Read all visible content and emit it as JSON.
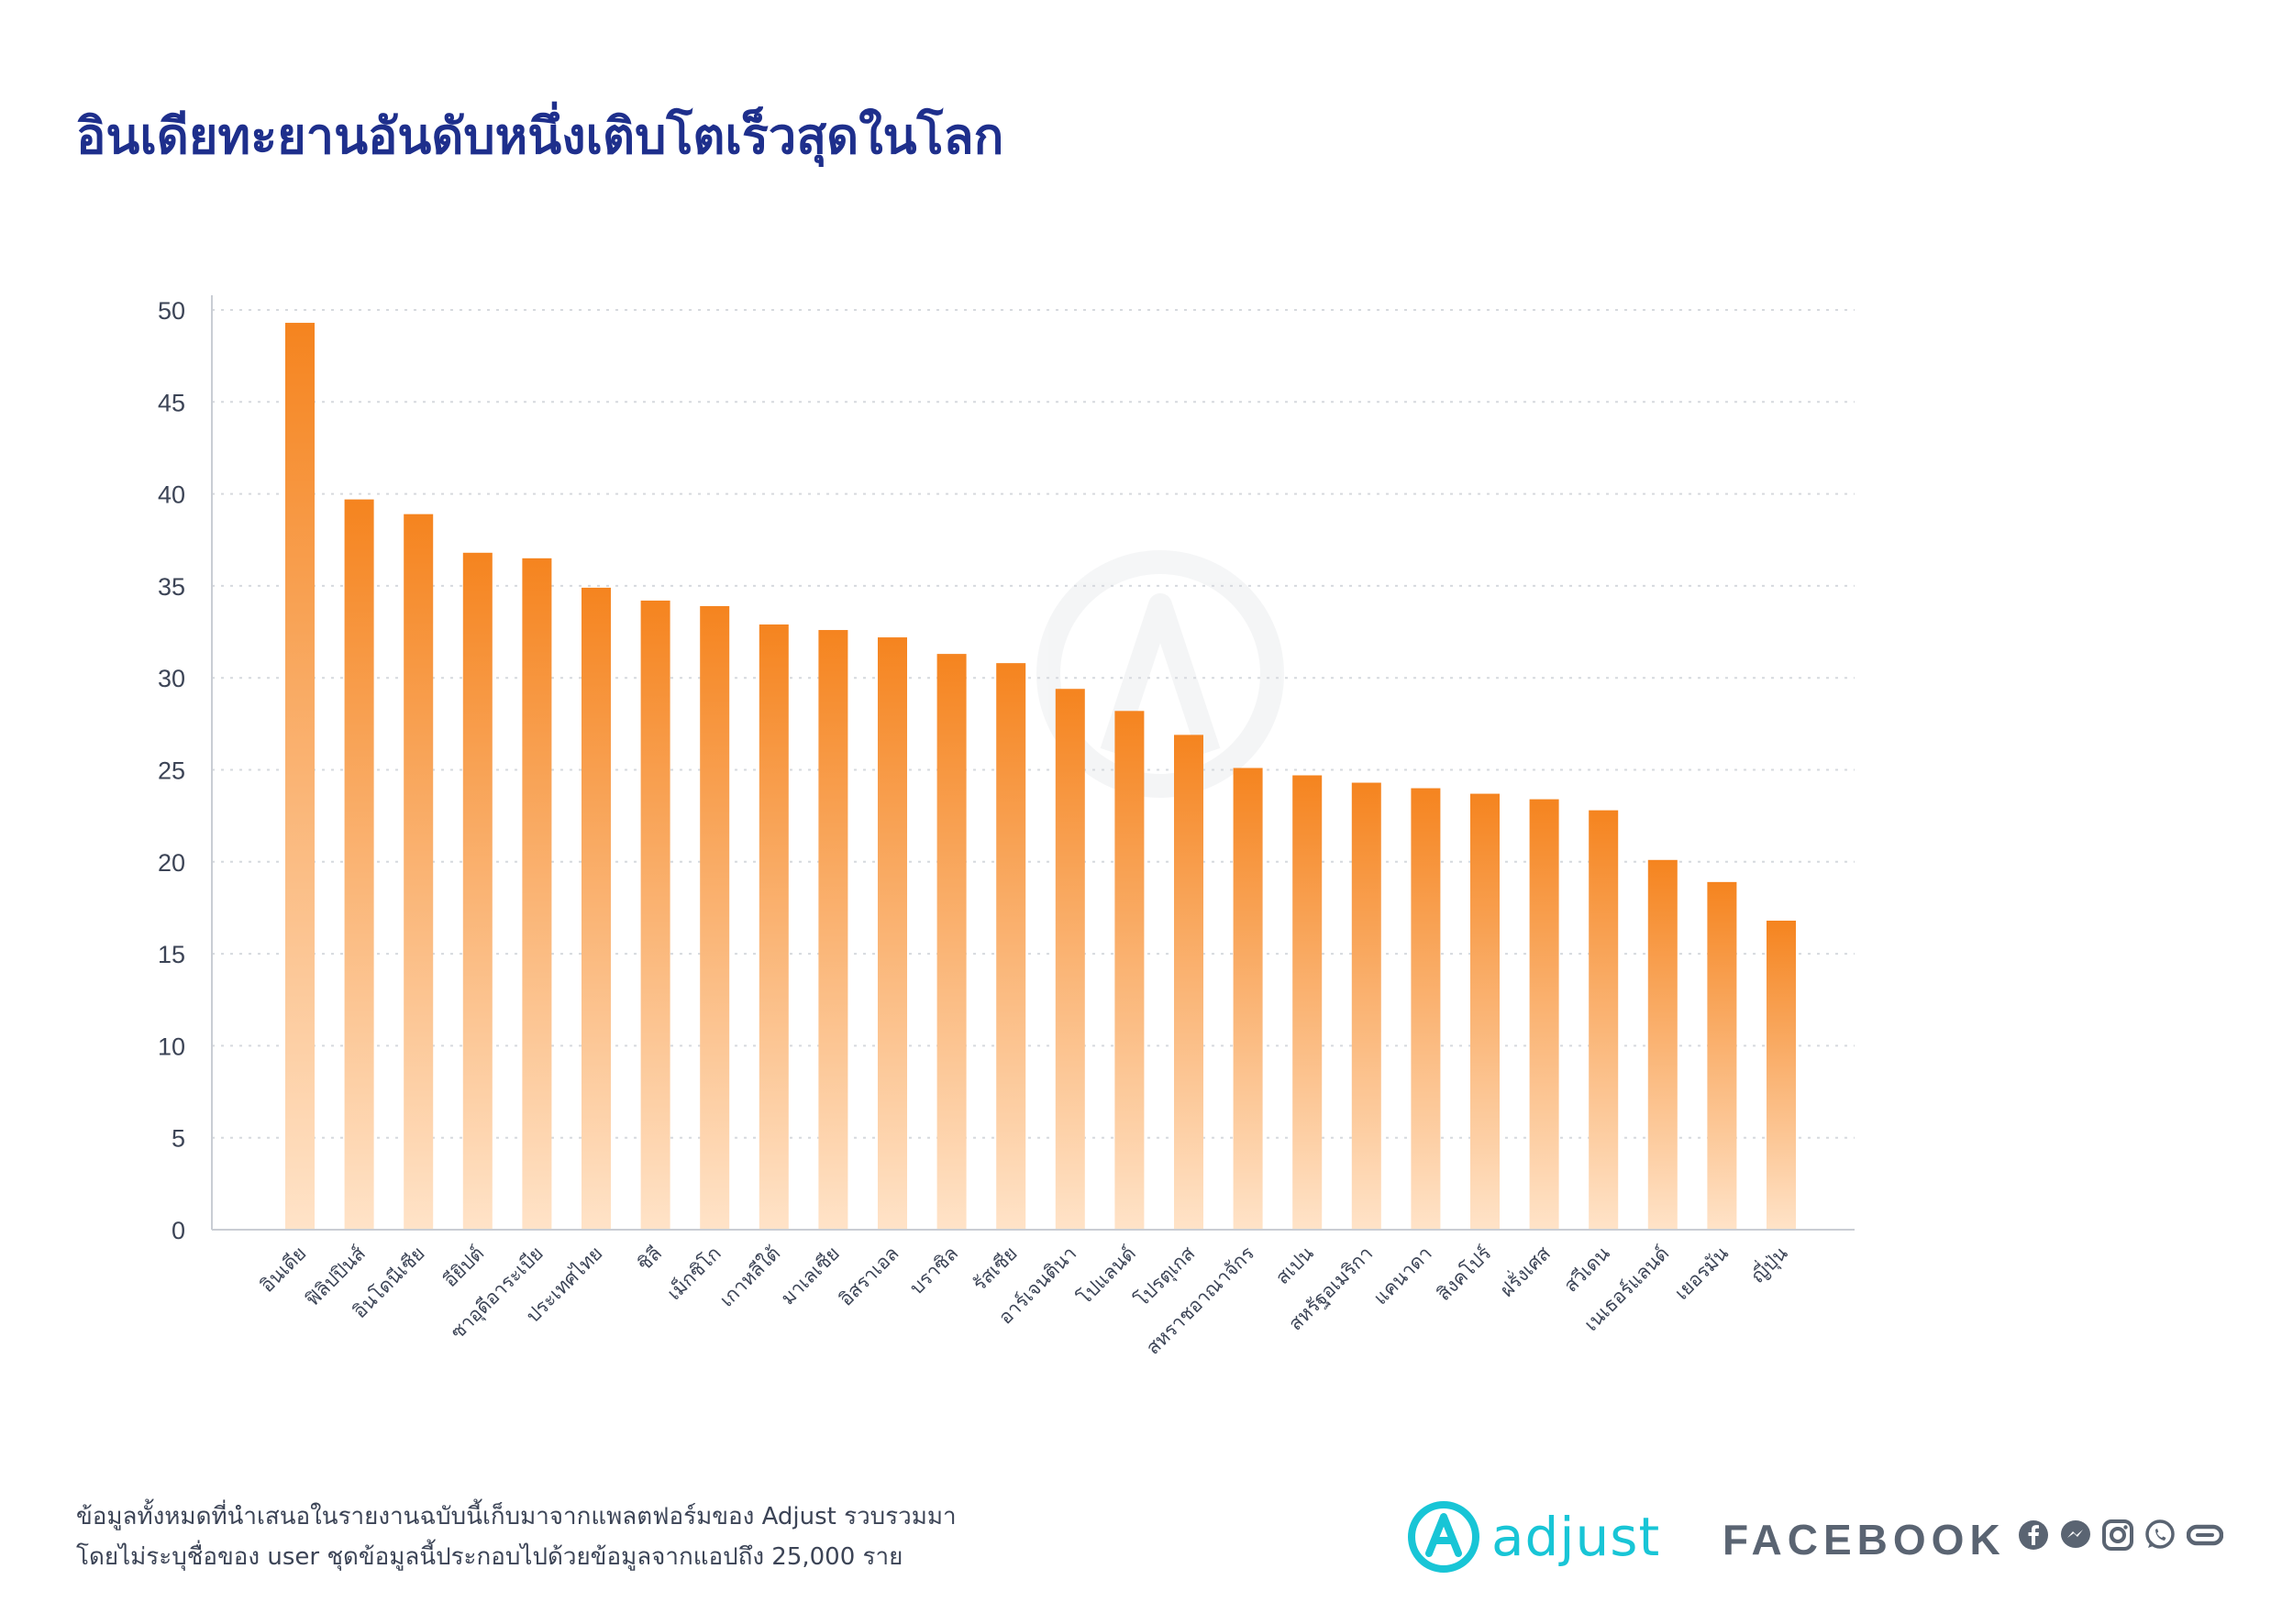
{
  "title": "อินเดียทะยานอันดับหนึ่งเติบโตเร็วสุดในโลก",
  "footer": {
    "line1": "ข้อมูลทั้งหมดที่นำเสนอในรายงานฉบับนี้เก็บมาจากแพลตฟอร์มของ Adjust รวบรวมมา",
    "line2": "โดยไม่ระบุชื่อของ user ชุดข้อมูลนี้ประกอบไปด้วยข้อมูลจากแอปถึง 25,000 ราย"
  },
  "logos": {
    "adjust_text": "adjust",
    "facebook_text": "FACEBOOK",
    "social_icons": [
      "facebook-icon",
      "messenger-icon",
      "instagram-icon",
      "whatsapp-icon",
      "oculus-icon"
    ]
  },
  "colors": {
    "title": "#1e2f8c",
    "bar_top": "#f5841f",
    "bar_bottom": "#ffe3c8",
    "adjust": "#18c5d6",
    "facebook": "#5a6472"
  },
  "chart_data": {
    "type": "bar",
    "categories": [
      "อินเดีย",
      "ฟิลิปปินส์",
      "อินโดนีเซีย",
      "อียิปต์",
      "ซาอุดีอาระเบีย",
      "ประเทศไทย",
      "ชิลี",
      "เม็กซิโก",
      "เกาหลีใต้",
      "มาเลเซีย",
      "อิสราเอล",
      "บราซิล",
      "รัสเซีย",
      "อาร์เจนตินา",
      "โปแลนด์",
      "โปรตุเกส",
      "สหราชอาณาจักร",
      "สเปน",
      "สหรัฐอเมริกา",
      "แคนาดา",
      "สิงคโปร์",
      "ฝรั่งเศส",
      "สวีเดน",
      "เนเธอร์แลนด์",
      "เยอรมัน",
      "ญี่ปุ่น"
    ],
    "values": [
      49.3,
      39.7,
      38.9,
      36.8,
      36.5,
      34.9,
      34.2,
      33.9,
      32.9,
      32.6,
      32.2,
      31.3,
      30.8,
      29.4,
      28.2,
      26.9,
      25.1,
      24.7,
      24.3,
      24.0,
      23.7,
      23.4,
      22.8,
      20.1,
      18.9,
      16.8
    ],
    "ylim": [
      0,
      50
    ],
    "yticks": [
      0,
      5,
      10,
      15,
      20,
      25,
      30,
      35,
      40,
      45,
      50
    ],
    "grid": true,
    "title": "",
    "xlabel": "",
    "ylabel": ""
  }
}
